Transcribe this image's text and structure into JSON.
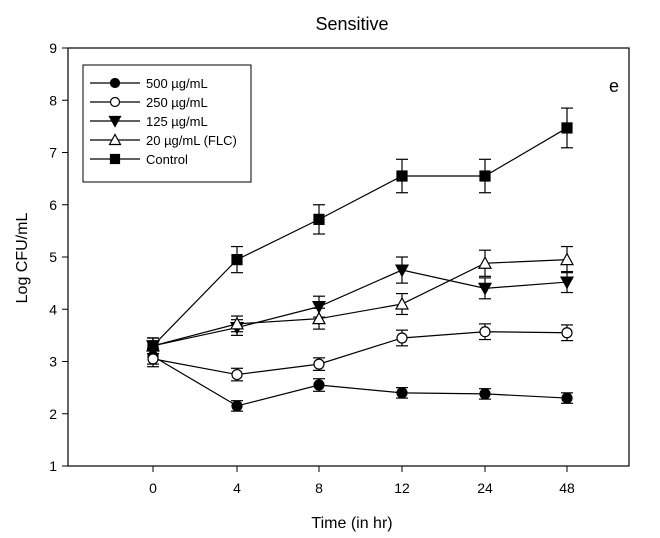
{
  "chart_data": {
    "type": "line",
    "title": "Sensitive",
    "xlabel": "Time (in hr)",
    "ylabel": "Log CFU/mL",
    "annotation": "e",
    "x": [
      "0",
      "4",
      "8",
      "12",
      "24",
      "48"
    ],
    "ylim": [
      1,
      9
    ],
    "yticks": [
      1,
      2,
      3,
      4,
      5,
      6,
      7,
      8,
      9
    ],
    "legend_position": "top-left",
    "grid": false,
    "series": [
      {
        "name": "500 µg/mL",
        "marker": "circle-filled",
        "values": [
          3.1,
          2.15,
          2.55,
          2.4,
          2.38,
          2.3
        ],
        "errors": [
          0.15,
          0.1,
          0.12,
          0.1,
          0.1,
          0.1
        ]
      },
      {
        "name": "250 µg/mL",
        "marker": "circle-open",
        "values": [
          3.05,
          2.75,
          2.95,
          3.45,
          3.57,
          3.55
        ],
        "errors": [
          0.15,
          0.12,
          0.12,
          0.15,
          0.15,
          0.15
        ]
      },
      {
        "name": "125 µg/mL",
        "marker": "triangle-down-filled",
        "values": [
          3.3,
          3.65,
          4.05,
          4.75,
          4.4,
          4.52
        ],
        "errors": [
          0.15,
          0.15,
          0.2,
          0.25,
          0.2,
          0.2
        ]
      },
      {
        "name": "20 µg/mL (FLC)",
        "marker": "triangle-up-open",
        "values": [
          3.3,
          3.72,
          3.82,
          4.1,
          4.88,
          4.95
        ],
        "errors": [
          0.15,
          0.15,
          0.2,
          0.2,
          0.25,
          0.25
        ]
      },
      {
        "name": "Control",
        "marker": "square-filled",
        "values": [
          3.3,
          4.95,
          5.72,
          6.55,
          6.55,
          7.47
        ],
        "errors": [
          0.15,
          0.25,
          0.28,
          0.32,
          0.32,
          0.38
        ]
      }
    ]
  }
}
